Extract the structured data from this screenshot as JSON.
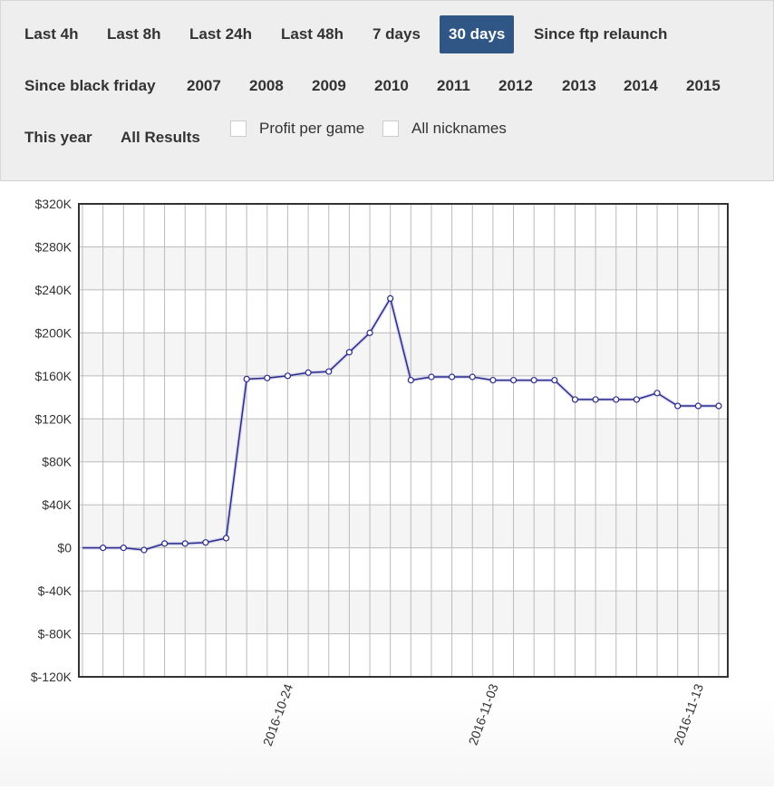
{
  "filters": {
    "row1": [
      {
        "label": "Last 4h",
        "active": false
      },
      {
        "label": "Last 8h",
        "active": false
      },
      {
        "label": "Last 24h",
        "active": false
      },
      {
        "label": "Last 48h",
        "active": false
      },
      {
        "label": "7 days",
        "active": false
      },
      {
        "label": "30 days",
        "active": true
      },
      {
        "label": "Since ftp relaunch",
        "active": false
      }
    ],
    "row2": [
      {
        "label": "Since black friday",
        "active": false
      },
      {
        "label": "2007",
        "active": false
      },
      {
        "label": "2008",
        "active": false
      },
      {
        "label": "2009",
        "active": false
      },
      {
        "label": "2010",
        "active": false
      },
      {
        "label": "2011",
        "active": false
      },
      {
        "label": "2012",
        "active": false
      },
      {
        "label": "2013",
        "active": false
      },
      {
        "label": "2014",
        "active": false
      },
      {
        "label": "2015",
        "active": false
      }
    ],
    "row3": [
      {
        "label": "This year",
        "active": false
      },
      {
        "label": "All Results",
        "active": false
      }
    ],
    "checkboxes": [
      {
        "label": "Profit per game",
        "checked": false
      },
      {
        "label": "All nicknames",
        "checked": false
      }
    ],
    "active_color": "#2f5685"
  },
  "chart_data": {
    "type": "line",
    "x": [
      "2016-10-14",
      "2016-10-15",
      "2016-10-16",
      "2016-10-17",
      "2016-10-18",
      "2016-10-19",
      "2016-10-20",
      "2016-10-21",
      "2016-10-22",
      "2016-10-23",
      "2016-10-24",
      "2016-10-25",
      "2016-10-26",
      "2016-10-27",
      "2016-10-28",
      "2016-10-29",
      "2016-10-30",
      "2016-10-31",
      "2016-11-01",
      "2016-11-02",
      "2016-11-03",
      "2016-11-04",
      "2016-11-05",
      "2016-11-06",
      "2016-11-07",
      "2016-11-08",
      "2016-11-09",
      "2016-11-10",
      "2016-11-11",
      "2016-11-12",
      "2016-11-13",
      "2016-11-14"
    ],
    "series": [
      {
        "values": [
          0,
          0,
          0,
          -2000,
          4000,
          4000,
          5000,
          9000,
          157000,
          158000,
          160000,
          163000,
          164000,
          182000,
          200000,
          232000,
          156000,
          159000,
          159000,
          159000,
          156000,
          156000,
          156000,
          156000,
          138000,
          138000,
          138000,
          138000,
          144000,
          132000,
          132000,
          132000
        ],
        "color": "#2b2b8c"
      }
    ],
    "ylim": [
      -120000,
      320000
    ],
    "yticks": [
      {
        "value": 320000,
        "label": "$320K"
      },
      {
        "value": 280000,
        "label": "$280K"
      },
      {
        "value": 240000,
        "label": "$240K"
      },
      {
        "value": 200000,
        "label": "$200K"
      },
      {
        "value": 160000,
        "label": "$160K"
      },
      {
        "value": 120000,
        "label": "$120K"
      },
      {
        "value": 80000,
        "label": "$80K"
      },
      {
        "value": 40000,
        "label": "$40K"
      },
      {
        "value": 0,
        "label": "$0"
      },
      {
        "value": -40000,
        "label": "$-40K"
      },
      {
        "value": -80000,
        "label": "$-80K"
      },
      {
        "value": -120000,
        "label": "$-120K"
      }
    ],
    "xtick_labels": [
      "2016-10-24",
      "2016-11-03",
      "2016-11-13"
    ],
    "grid": true,
    "alternate_band_color": "#f5f5f5"
  }
}
